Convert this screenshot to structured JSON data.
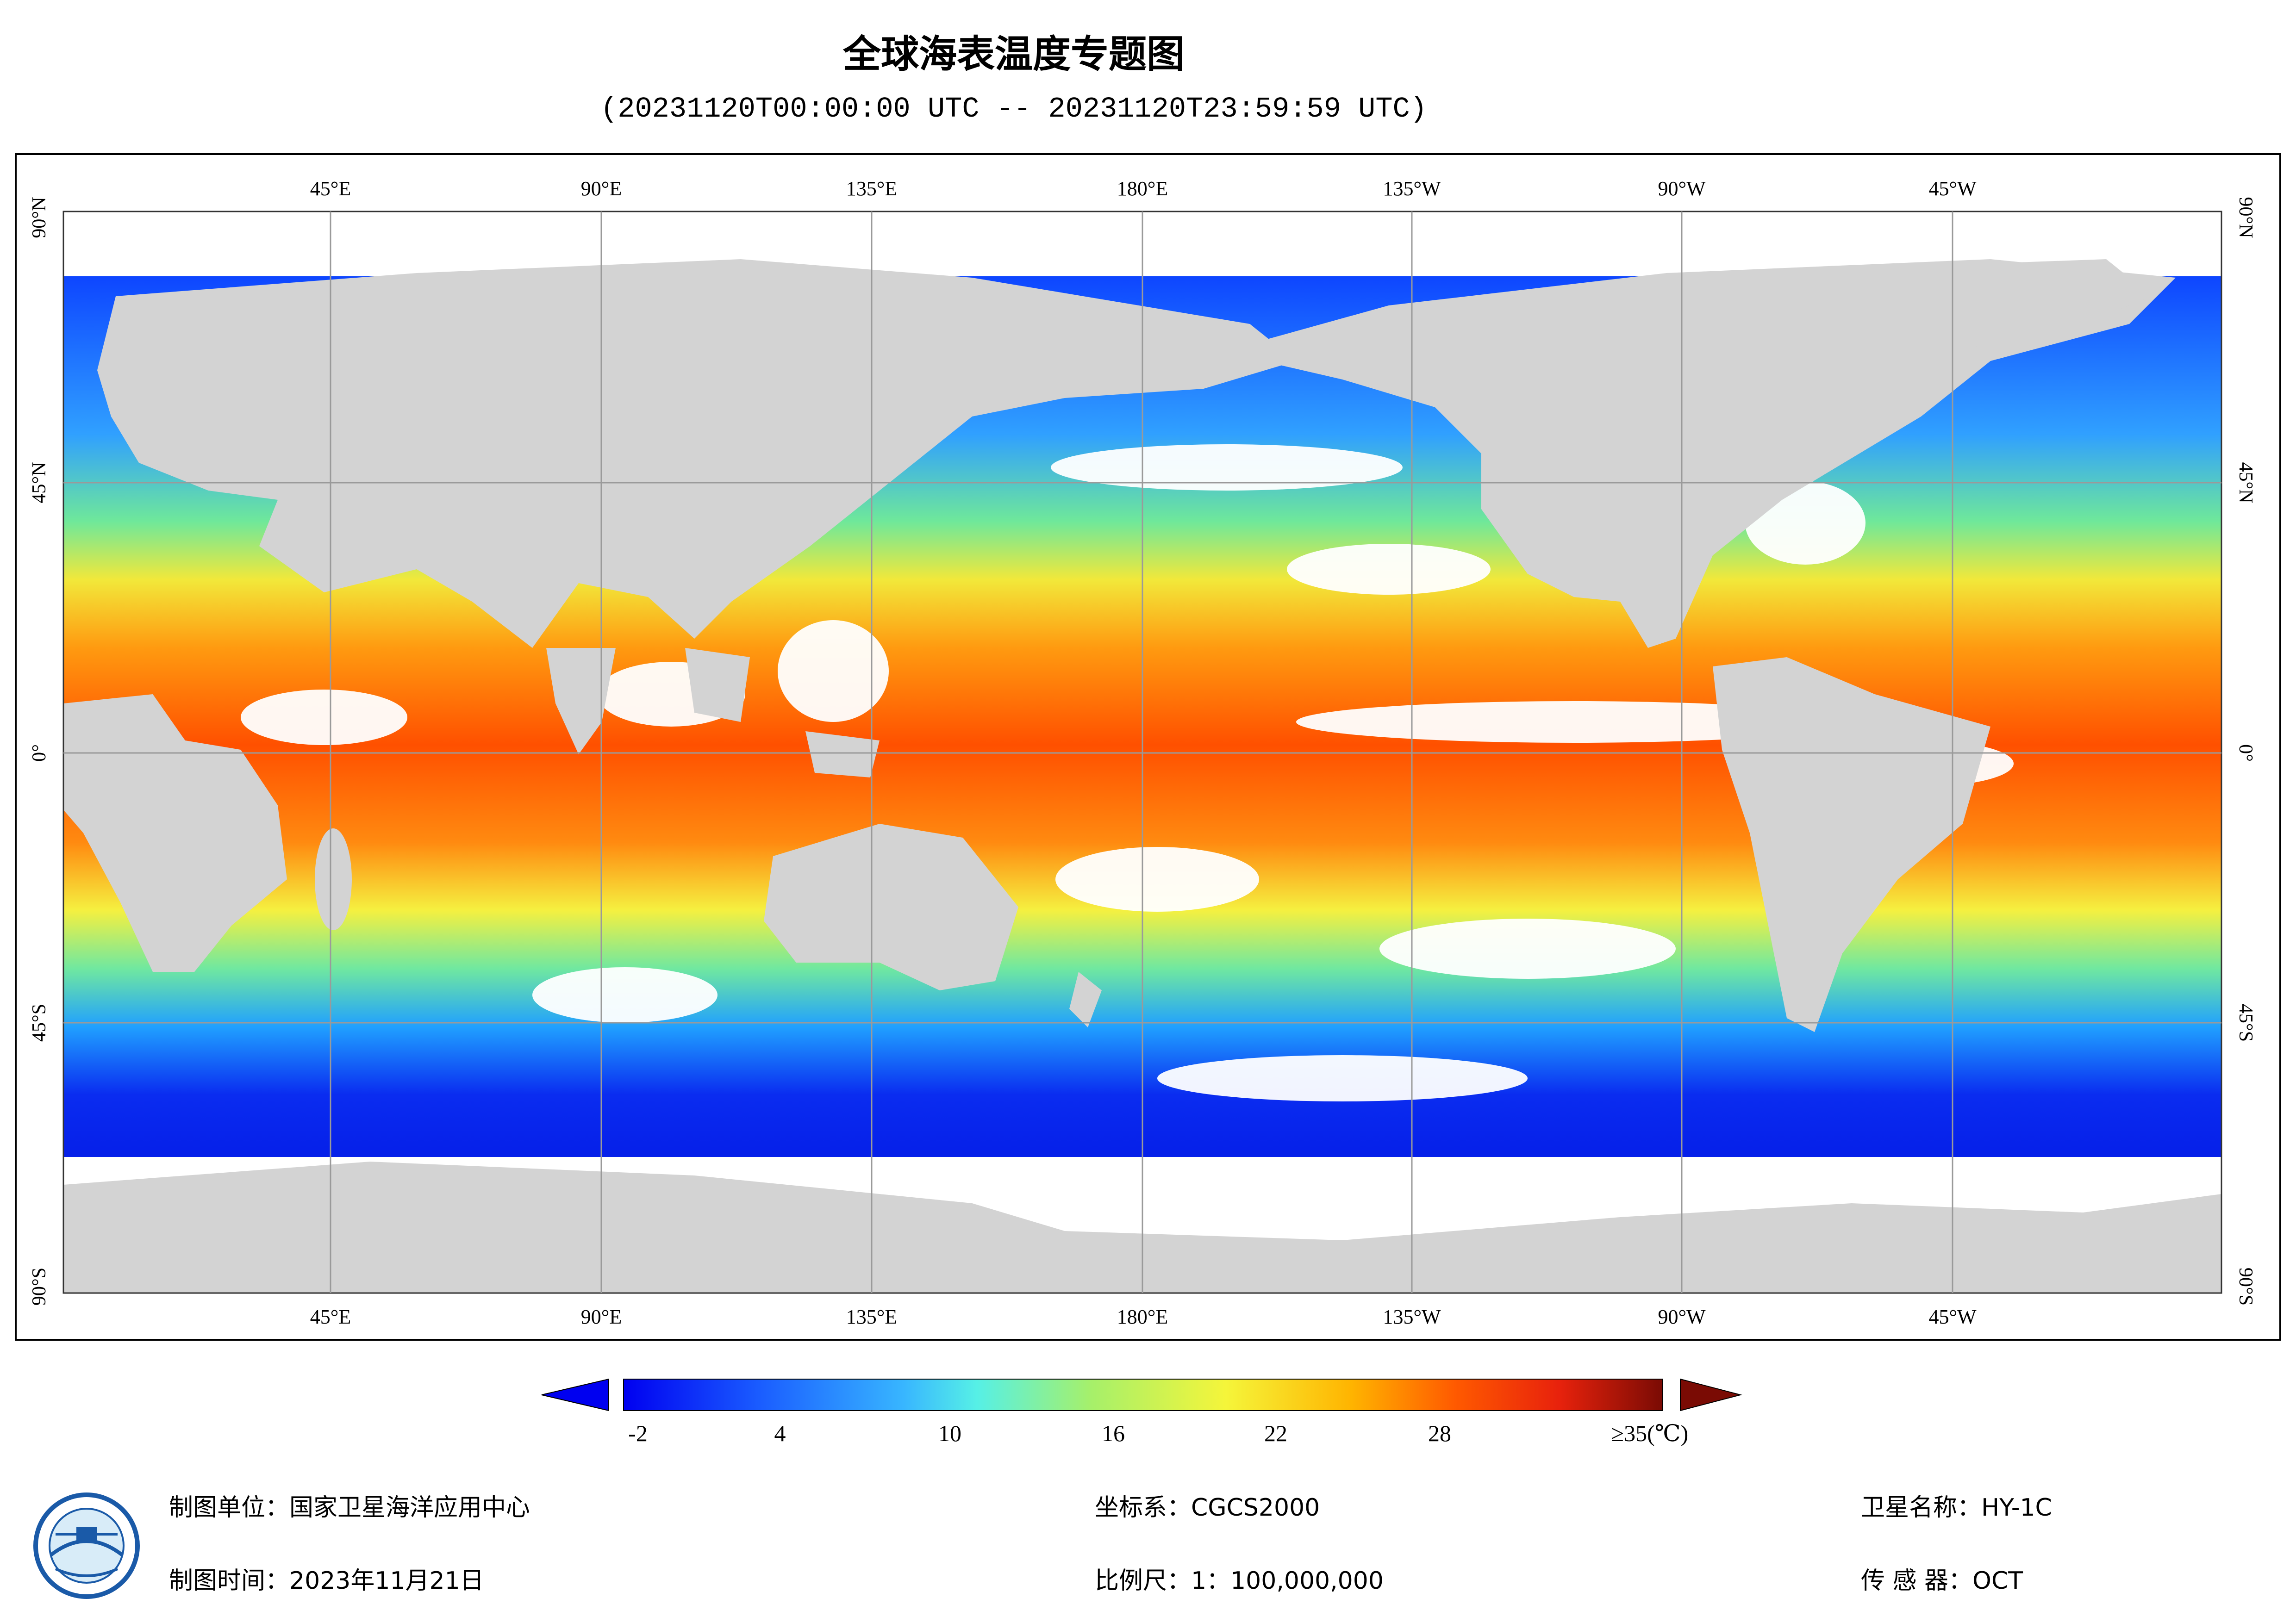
{
  "header": {
    "title": "全球海表温度专题图",
    "time_range": "(20231120T00:00:00 UTC -- 20231120T23:59:59 UTC)"
  },
  "map": {
    "lon_labels_top": [
      "45°E",
      "90°E",
      "135°E",
      "180°E",
      "135°W",
      "90°W",
      "45°W"
    ],
    "lon_labels_bottom": [
      "45°E",
      "90°E",
      "135°E",
      "180°E",
      "135°W",
      "90°W",
      "45°W"
    ],
    "lat_labels_left": [
      "90°N",
      "45°N",
      "0°",
      "45°S",
      "90°S"
    ],
    "lat_labels_right": [
      "90°N",
      "45°N",
      "0°",
      "45°S",
      "90°S"
    ],
    "land_color": "#d3d3d3",
    "no_data_color": "#ffffff"
  },
  "colorbar": {
    "tick_labels": [
      "-2",
      "4",
      "10",
      "16",
      "22",
      "28"
    ],
    "max_label": "≥35(℃)",
    "colors": [
      "#0000f0",
      "#1a5cff",
      "#38b6ff",
      "#56f0e6",
      "#a6f06a",
      "#f5f53a",
      "#ffb400",
      "#ff5a00",
      "#e8220c",
      "#7a0b04"
    ]
  },
  "footer": {
    "org": "制图单位：国家卫星海洋应用中心",
    "date": "制图时间：2023年11月21日",
    "crs": "坐标系：CGCS2000",
    "scale": "比例尺：1：100,000,000",
    "satellite": "卫星名称：HY-1C",
    "sensor": "传  感  器：OCT"
  }
}
